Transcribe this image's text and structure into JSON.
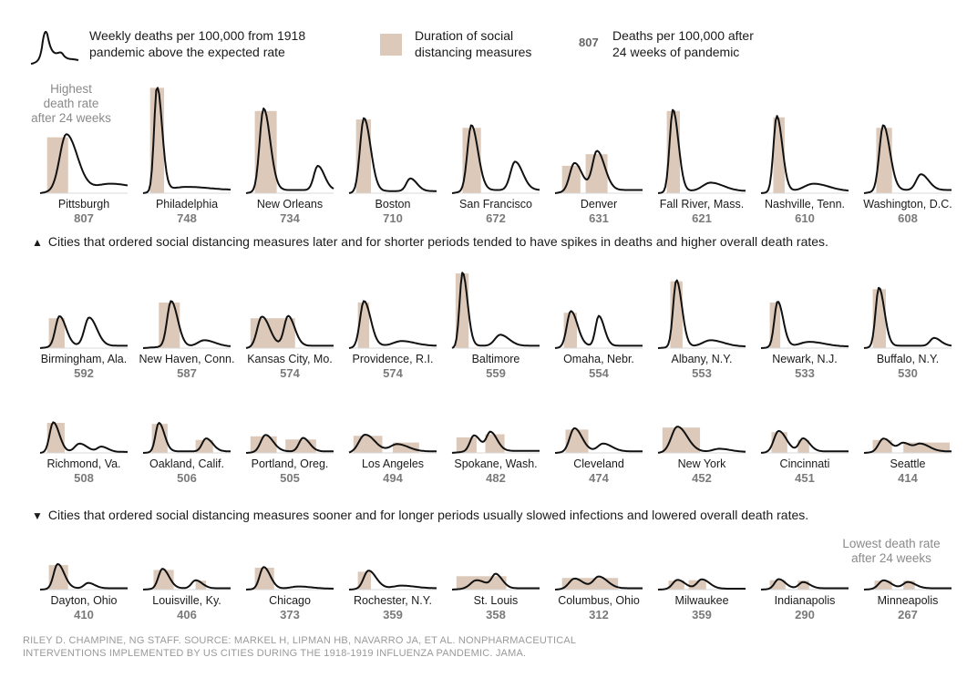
{
  "legend": {
    "line_text": [
      "Weekly deaths per 100,000 from 1918",
      "pandemic above the expected rate"
    ],
    "bar_text": [
      "Duration of social",
      "distancing measures"
    ],
    "num_sample": "807",
    "num_text": [
      "Deaths per 100,000 after",
      "24 weeks of pandemic"
    ]
  },
  "notes": {
    "highest": [
      "Highest",
      "death rate",
      "after 24 weeks"
    ],
    "lowest": [
      "Lowest death rate",
      "after 24 weeks"
    ]
  },
  "sections": {
    "later": "Cities that ordered social distancing measures later and for shorter periods tended to have spikes in deaths and higher overall death rates.",
    "sooner": "Cities that ordered social distancing measures sooner and for longer periods usually slowed infections and lowered overall death rates."
  },
  "source": [
    "RILEY D. CHAMPINE, NG STAFF. SOURCE: MARKEL H, LIPMAN HB, NAVARRO JA, ET AL. NONPHARMACEUTICAL",
    "INTERVENTIONS IMPLEMENTED BY US CITIES DURING THE 1918-1919 INFLUENZA PANDEMIC. JAMA."
  ],
  "colors": {
    "line": "#111111",
    "bar": "#dcc9b9",
    "value": "#7a7a7a"
  },
  "chart_data": {
    "type": "line",
    "title": "",
    "xlabel": "",
    "ylabel": "",
    "cities": [
      {
        "name": "Pittsburgh",
        "value": 807,
        "bars": [
          [
            0.08,
            0.32
          ]
        ],
        "peaks": [
          [
            0.3,
            0.53,
            0.1
          ],
          [
            0.8,
            0.06,
            0.2
          ]
        ],
        "tail": 0.03
      },
      {
        "name": "Philadelphia",
        "value": 748,
        "bars": [
          [
            0.08,
            0.24
          ]
        ],
        "peaks": [
          [
            0.16,
            1.0,
            0.045
          ],
          [
            0.5,
            0.03,
            0.2
          ]
        ],
        "tail": 0.03
      },
      {
        "name": "New Orleans",
        "value": 734,
        "bars": [
          [
            0.1,
            0.35
          ]
        ],
        "peaks": [
          [
            0.2,
            0.78,
            0.06
          ],
          [
            0.82,
            0.23,
            0.06
          ]
        ],
        "tail": 0.03
      },
      {
        "name": "Boston",
        "value": 710,
        "bars": [
          [
            0.08,
            0.25
          ]
        ],
        "peaks": [
          [
            0.17,
            0.7,
            0.06
          ],
          [
            0.7,
            0.12,
            0.06
          ]
        ],
        "tail": 0.02
      },
      {
        "name": "San Francisco",
        "value": 672,
        "bars": [
          [
            0.12,
            0.33
          ]
        ],
        "peaks": [
          [
            0.22,
            0.62,
            0.06
          ],
          [
            0.72,
            0.27,
            0.07
          ]
        ],
        "tail": 0.03
      },
      {
        "name": "Denver",
        "value": 631,
        "bars": [
          [
            0.08,
            0.29
          ],
          [
            0.35,
            0.6
          ]
        ],
        "peaks": [
          [
            0.22,
            0.26,
            0.07
          ],
          [
            0.48,
            0.37,
            0.07
          ]
        ],
        "tail": 0.03
      },
      {
        "name": "Fall River, Mass.",
        "value": 621,
        "bars": [
          [
            0.1,
            0.25
          ]
        ],
        "peaks": [
          [
            0.17,
            0.78,
            0.05
          ],
          [
            0.6,
            0.08,
            0.12
          ]
        ],
        "tail": 0.02
      },
      {
        "name": "Nashville, Tenn.",
        "value": 610,
        "bars": [
          [
            0.14,
            0.27
          ]
        ],
        "peaks": [
          [
            0.18,
            0.72,
            0.05
          ],
          [
            0.6,
            0.07,
            0.14
          ]
        ],
        "tail": 0.02
      },
      {
        "name": "Washington, D.C.",
        "value": 608,
        "bars": [
          [
            0.14,
            0.32
          ]
        ],
        "peaks": [
          [
            0.22,
            0.62,
            0.06
          ],
          [
            0.65,
            0.15,
            0.07
          ]
        ],
        "tail": 0.03
      },
      {
        "name": "Birmingham, Ala.",
        "value": 592,
        "bars": [
          [
            0.1,
            0.28
          ]
        ],
        "peaks": [
          [
            0.22,
            0.38,
            0.06
          ],
          [
            0.56,
            0.36,
            0.07
          ]
        ],
        "tail": 0.03
      },
      {
        "name": "New Haven, Conn.",
        "value": 587,
        "bars": [
          [
            0.18,
            0.42
          ]
        ],
        "peaks": [
          [
            0.32,
            0.58,
            0.06
          ],
          [
            0.7,
            0.08,
            0.1
          ]
        ],
        "tail": 0.02
      },
      {
        "name": "Kansas City, Mo.",
        "value": 574,
        "bars": [
          [
            0.05,
            0.56
          ]
        ],
        "peaks": [
          [
            0.18,
            0.38,
            0.07
          ],
          [
            0.48,
            0.38,
            0.06
          ]
        ],
        "tail": 0.03
      },
      {
        "name": "Providence, R.I.",
        "value": 574,
        "bars": [
          [
            0.1,
            0.23
          ]
        ],
        "peaks": [
          [
            0.17,
            0.58,
            0.06
          ],
          [
            0.6,
            0.06,
            0.12
          ]
        ],
        "tail": 0.03
      },
      {
        "name": "Baltimore",
        "value": 559,
        "bars": [
          [
            0.04,
            0.19
          ]
        ],
        "peaks": [
          [
            0.12,
            0.95,
            0.045
          ],
          [
            0.55,
            0.14,
            0.08
          ]
        ],
        "tail": 0.03
      },
      {
        "name": "Omaha, Nebr.",
        "value": 554,
        "bars": [
          [
            0.1,
            0.25
          ]
        ],
        "peaks": [
          [
            0.18,
            0.45,
            0.06
          ],
          [
            0.5,
            0.38,
            0.05
          ]
        ],
        "tail": 0.03
      },
      {
        "name": "Albany, N.Y.",
        "value": 553,
        "bars": [
          [
            0.14,
            0.28
          ]
        ],
        "peaks": [
          [
            0.21,
            0.85,
            0.05
          ],
          [
            0.6,
            0.08,
            0.12
          ]
        ],
        "tail": 0.02
      },
      {
        "name": "Newark, N.J.",
        "value": 533,
        "bars": [
          [
            0.1,
            0.22
          ]
        ],
        "peaks": [
          [
            0.19,
            0.58,
            0.05
          ],
          [
            0.55,
            0.06,
            0.14
          ]
        ],
        "tail": 0.02
      },
      {
        "name": "Buffalo, N.Y.",
        "value": 530,
        "bars": [
          [
            0.1,
            0.25
          ]
        ],
        "peaks": [
          [
            0.17,
            0.75,
            0.05
          ],
          [
            0.8,
            0.1,
            0.06
          ]
        ],
        "tail": 0.03
      },
      {
        "name": "Richmond, Va.",
        "value": 508,
        "bars": [
          [
            0.08,
            0.28
          ]
        ],
        "peaks": [
          [
            0.15,
            0.58,
            0.055
          ],
          [
            0.45,
            0.16,
            0.07
          ],
          [
            0.7,
            0.1,
            0.06
          ]
        ],
        "tail": 0.02
      },
      {
        "name": "Oakland, Calif.",
        "value": 506,
        "bars": [
          [
            0.1,
            0.28
          ],
          [
            0.6,
            0.8
          ]
        ],
        "peaks": [
          [
            0.18,
            0.56,
            0.05
          ],
          [
            0.72,
            0.25,
            0.06
          ]
        ],
        "tail": 0.03
      },
      {
        "name": "Portland, Oreg.",
        "value": 505,
        "bars": [
          [
            0.05,
            0.35
          ],
          [
            0.45,
            0.8
          ]
        ],
        "peaks": [
          [
            0.22,
            0.32,
            0.07
          ],
          [
            0.65,
            0.26,
            0.06
          ]
        ],
        "tail": 0.03
      },
      {
        "name": "Los Angeles",
        "value": 494,
        "bars": [
          [
            0.05,
            0.38
          ],
          [
            0.5,
            0.8
          ]
        ],
        "peaks": [
          [
            0.18,
            0.33,
            0.09
          ],
          [
            0.55,
            0.14,
            0.1
          ]
        ],
        "tail": 0.03
      },
      {
        "name": "Spokane, Wash.",
        "value": 482,
        "bars": [
          [
            0.05,
            0.28
          ],
          [
            0.38,
            0.6
          ]
        ],
        "peaks": [
          [
            0.25,
            0.3,
            0.06
          ],
          [
            0.44,
            0.36,
            0.06
          ]
        ],
        "tail": 0.04
      },
      {
        "name": "Cleveland",
        "value": 474,
        "bars": [
          [
            0.12,
            0.38
          ]
        ],
        "peaks": [
          [
            0.22,
            0.45,
            0.07
          ],
          [
            0.55,
            0.15,
            0.08
          ]
        ],
        "tail": 0.03
      },
      {
        "name": "New York",
        "value": 452,
        "bars": [
          [
            0.05,
            0.48
          ]
        ],
        "peaks": [
          [
            0.22,
            0.49,
            0.09
          ],
          [
            0.7,
            0.06,
            0.1
          ]
        ],
        "tail": 0.02
      },
      {
        "name": "Cincinnati",
        "value": 451,
        "bars": [
          [
            0.12,
            0.3
          ],
          [
            0.42,
            0.55
          ]
        ],
        "peaks": [
          [
            0.2,
            0.4,
            0.07
          ],
          [
            0.48,
            0.25,
            0.06
          ]
        ],
        "tail": 0.03
      },
      {
        "name": "Seattle",
        "value": 414,
        "bars": [
          [
            0.1,
            0.32
          ],
          [
            0.45,
            0.98
          ]
        ],
        "peaks": [
          [
            0.22,
            0.25,
            0.07
          ],
          [
            0.45,
            0.16,
            0.07
          ],
          [
            0.65,
            0.14,
            0.08
          ]
        ],
        "tail": 0.03
      },
      {
        "name": "Dayton, Ohio",
        "value": 410,
        "bars": [
          [
            0.1,
            0.32
          ]
        ],
        "peaks": [
          [
            0.2,
            0.55,
            0.06
          ],
          [
            0.55,
            0.12,
            0.06
          ]
        ],
        "tail": 0.03
      },
      {
        "name": "Louisville, Ky.",
        "value": 406,
        "bars": [
          [
            0.12,
            0.35
          ],
          [
            0.6,
            0.72
          ]
        ],
        "peaks": [
          [
            0.22,
            0.44,
            0.06
          ],
          [
            0.6,
            0.18,
            0.06
          ]
        ],
        "tail": 0.03
      },
      {
        "name": "Chicago",
        "value": 373,
        "bars": [
          [
            0.1,
            0.32
          ]
        ],
        "peaks": [
          [
            0.2,
            0.49,
            0.06
          ],
          [
            0.6,
            0.05,
            0.12
          ]
        ],
        "tail": 0.02
      },
      {
        "name": "Rochester, N.Y.",
        "value": 359,
        "bars": [
          [
            0.1,
            0.25
          ]
        ],
        "peaks": [
          [
            0.22,
            0.4,
            0.07
          ],
          [
            0.6,
            0.06,
            0.12
          ]
        ],
        "tail": 0.03
      },
      {
        "name": "St. Louis",
        "value": 358,
        "bars": [
          [
            0.05,
            0.62
          ]
        ],
        "peaks": [
          [
            0.28,
            0.18,
            0.09
          ],
          [
            0.5,
            0.3,
            0.06
          ]
        ],
        "tail": 0.03
      },
      {
        "name": "Columbus, Ohio",
        "value": 312,
        "bars": [
          [
            0.08,
            0.72
          ]
        ],
        "peaks": [
          [
            0.22,
            0.22,
            0.08
          ],
          [
            0.5,
            0.26,
            0.08
          ]
        ],
        "tail": 0.03
      },
      {
        "name": "Milwaukee",
        "value": 359,
        "bars": [
          [
            0.12,
            0.3
          ],
          [
            0.35,
            0.55
          ]
        ],
        "peaks": [
          [
            0.22,
            0.2,
            0.07
          ],
          [
            0.5,
            0.21,
            0.07
          ]
        ],
        "tail": 0.02
      },
      {
        "name": "Indianapolis",
        "value": 290,
        "bars": [
          [
            0.1,
            0.28
          ],
          [
            0.42,
            0.55
          ]
        ],
        "peaks": [
          [
            0.2,
            0.21,
            0.06
          ],
          [
            0.48,
            0.14,
            0.06
          ]
        ],
        "tail": 0.03
      },
      {
        "name": "Minneapolis",
        "value": 267,
        "bars": [
          [
            0.12,
            0.32
          ],
          [
            0.45,
            0.58
          ]
        ],
        "peaks": [
          [
            0.22,
            0.18,
            0.07
          ],
          [
            0.5,
            0.14,
            0.07
          ]
        ],
        "tail": 0.03
      }
    ]
  }
}
